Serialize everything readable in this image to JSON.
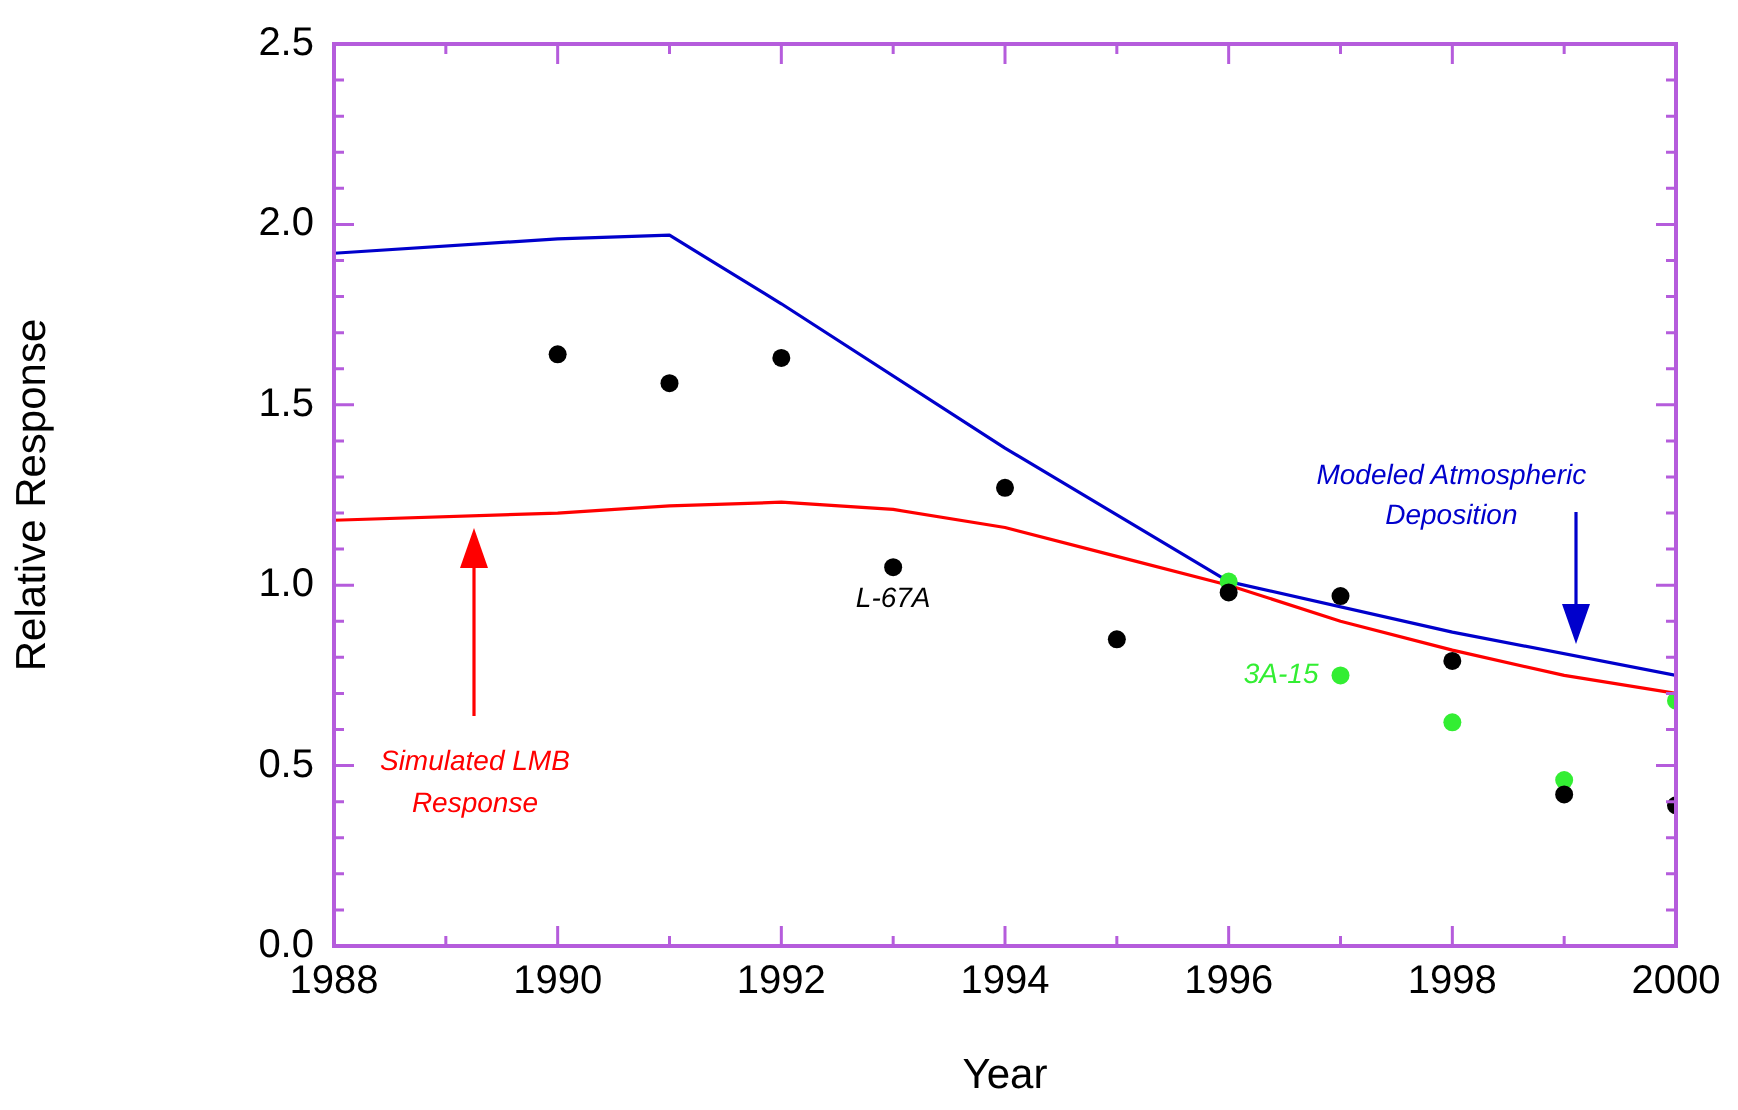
{
  "chart_data": {
    "type": "line",
    "xlabel": "Year",
    "ylabel": "Relative Response",
    "xlim": [
      1988,
      2000
    ],
    "ylim": [
      0,
      2.5
    ],
    "xticks": [
      1988,
      {
        "value": 1989,
        "label": null
      },
      1990,
      {
        "value": 1991,
        "label": null
      },
      1992,
      {
        "value": 1993,
        "label": null
      },
      1994,
      {
        "value": 1995,
        "label": null
      },
      1996,
      {
        "value": 1997,
        "label": null
      },
      1998,
      {
        "value": 1999,
        "label": null
      },
      2000
    ],
    "yticks": [
      {
        "value": 0,
        "label": "0.0"
      },
      {
        "value": 0.1,
        "label": null
      },
      {
        "value": 0.2,
        "label": null
      },
      {
        "value": 0.3,
        "label": null
      },
      {
        "value": 0.4,
        "label": null
      },
      0.5,
      {
        "value": 0.6,
        "label": null
      },
      {
        "value": 0.7,
        "label": null
      },
      {
        "value": 0.8,
        "label": null
      },
      {
        "value": 0.9,
        "label": null
      },
      {
        "value": 1,
        "label": "1.0"
      },
      {
        "value": 1.1,
        "label": null
      },
      {
        "value": 1.2,
        "label": null
      },
      {
        "value": 1.3,
        "label": null
      },
      {
        "value": 1.4,
        "label": null
      },
      1.5,
      {
        "value": 1.6,
        "label": null
      },
      {
        "value": 1.7,
        "label": null
      },
      {
        "value": 1.8,
        "label": null
      },
      {
        "value": 1.9,
        "label": null
      },
      {
        "value": 2,
        "label": "2.0"
      },
      {
        "value": 2.1,
        "label": null
      },
      {
        "value": 2.2,
        "label": null
      },
      {
        "value": 2.3,
        "label": null
      },
      {
        "value": 2.4,
        "label": null
      },
      2.5
    ],
    "series": [
      {
        "name": "Modeled Atmospheric Deposition",
        "type": "line",
        "marker": "none",
        "color": "#0000cc",
        "x": [
          1988,
          1990,
          1991,
          1992,
          1994,
          1996,
          1998,
          2000
        ],
        "values": [
          1.92,
          1.96,
          1.97,
          1.78,
          1.38,
          1.01,
          0.87,
          0.75
        ]
      },
      {
        "name": "Simulated LMB Response",
        "type": "line",
        "marker": "none",
        "color": "#ff0000",
        "x": [
          1988,
          1990,
          1991,
          1992,
          1993,
          1994,
          1995,
          1996,
          1997,
          1998,
          1999,
          2000
        ],
        "values": [
          1.18,
          1.2,
          1.22,
          1.23,
          1.21,
          1.16,
          1.08,
          1.0,
          0.9,
          0.82,
          0.75,
          0.7
        ]
      },
      {
        "name": "L-67A",
        "type": "scatter",
        "marker": "circle",
        "color": "#000000",
        "x": [
          1990,
          1991,
          1992,
          1993,
          1994,
          1995,
          1996,
          1997,
          1998,
          1999,
          2000
        ],
        "values": [
          1.64,
          1.56,
          1.63,
          1.05,
          1.27,
          0.85,
          0.98,
          0.97,
          0.79,
          0.42,
          0.39
        ]
      },
      {
        "name": "3A-15",
        "type": "scatter",
        "marker": "circle",
        "color": "#33ee33",
        "x": [
          1996,
          1997,
          1998,
          1999,
          2000
        ],
        "values": [
          1.01,
          0.75,
          0.62,
          0.46,
          0.68
        ]
      }
    ]
  }
}
